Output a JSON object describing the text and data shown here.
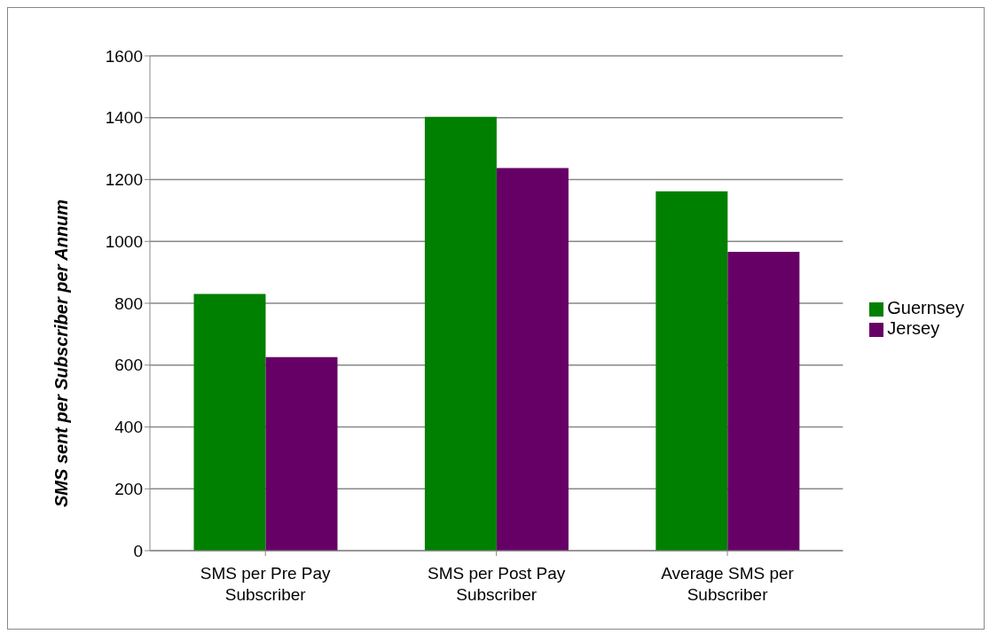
{
  "chart_data": {
    "type": "bar",
    "ylabel": "SMS sent per Subscriber per Annum",
    "categories": [
      "SMS per Pre Pay Subscriber",
      "SMS per Post Pay Subscriber",
      "Average SMS per Subscriber"
    ],
    "series": [
      {
        "name": "Guernsey",
        "color": "#008000",
        "values": [
          830,
          1403,
          1162
        ]
      },
      {
        "name": "Jersey",
        "color": "#660066",
        "values": [
          626,
          1237,
          966
        ]
      }
    ],
    "ylim": [
      0,
      1600
    ],
    "yticks": [
      0,
      200,
      400,
      600,
      800,
      1000,
      1200,
      1400,
      1600
    ],
    "grid": "y",
    "legend": "right"
  }
}
